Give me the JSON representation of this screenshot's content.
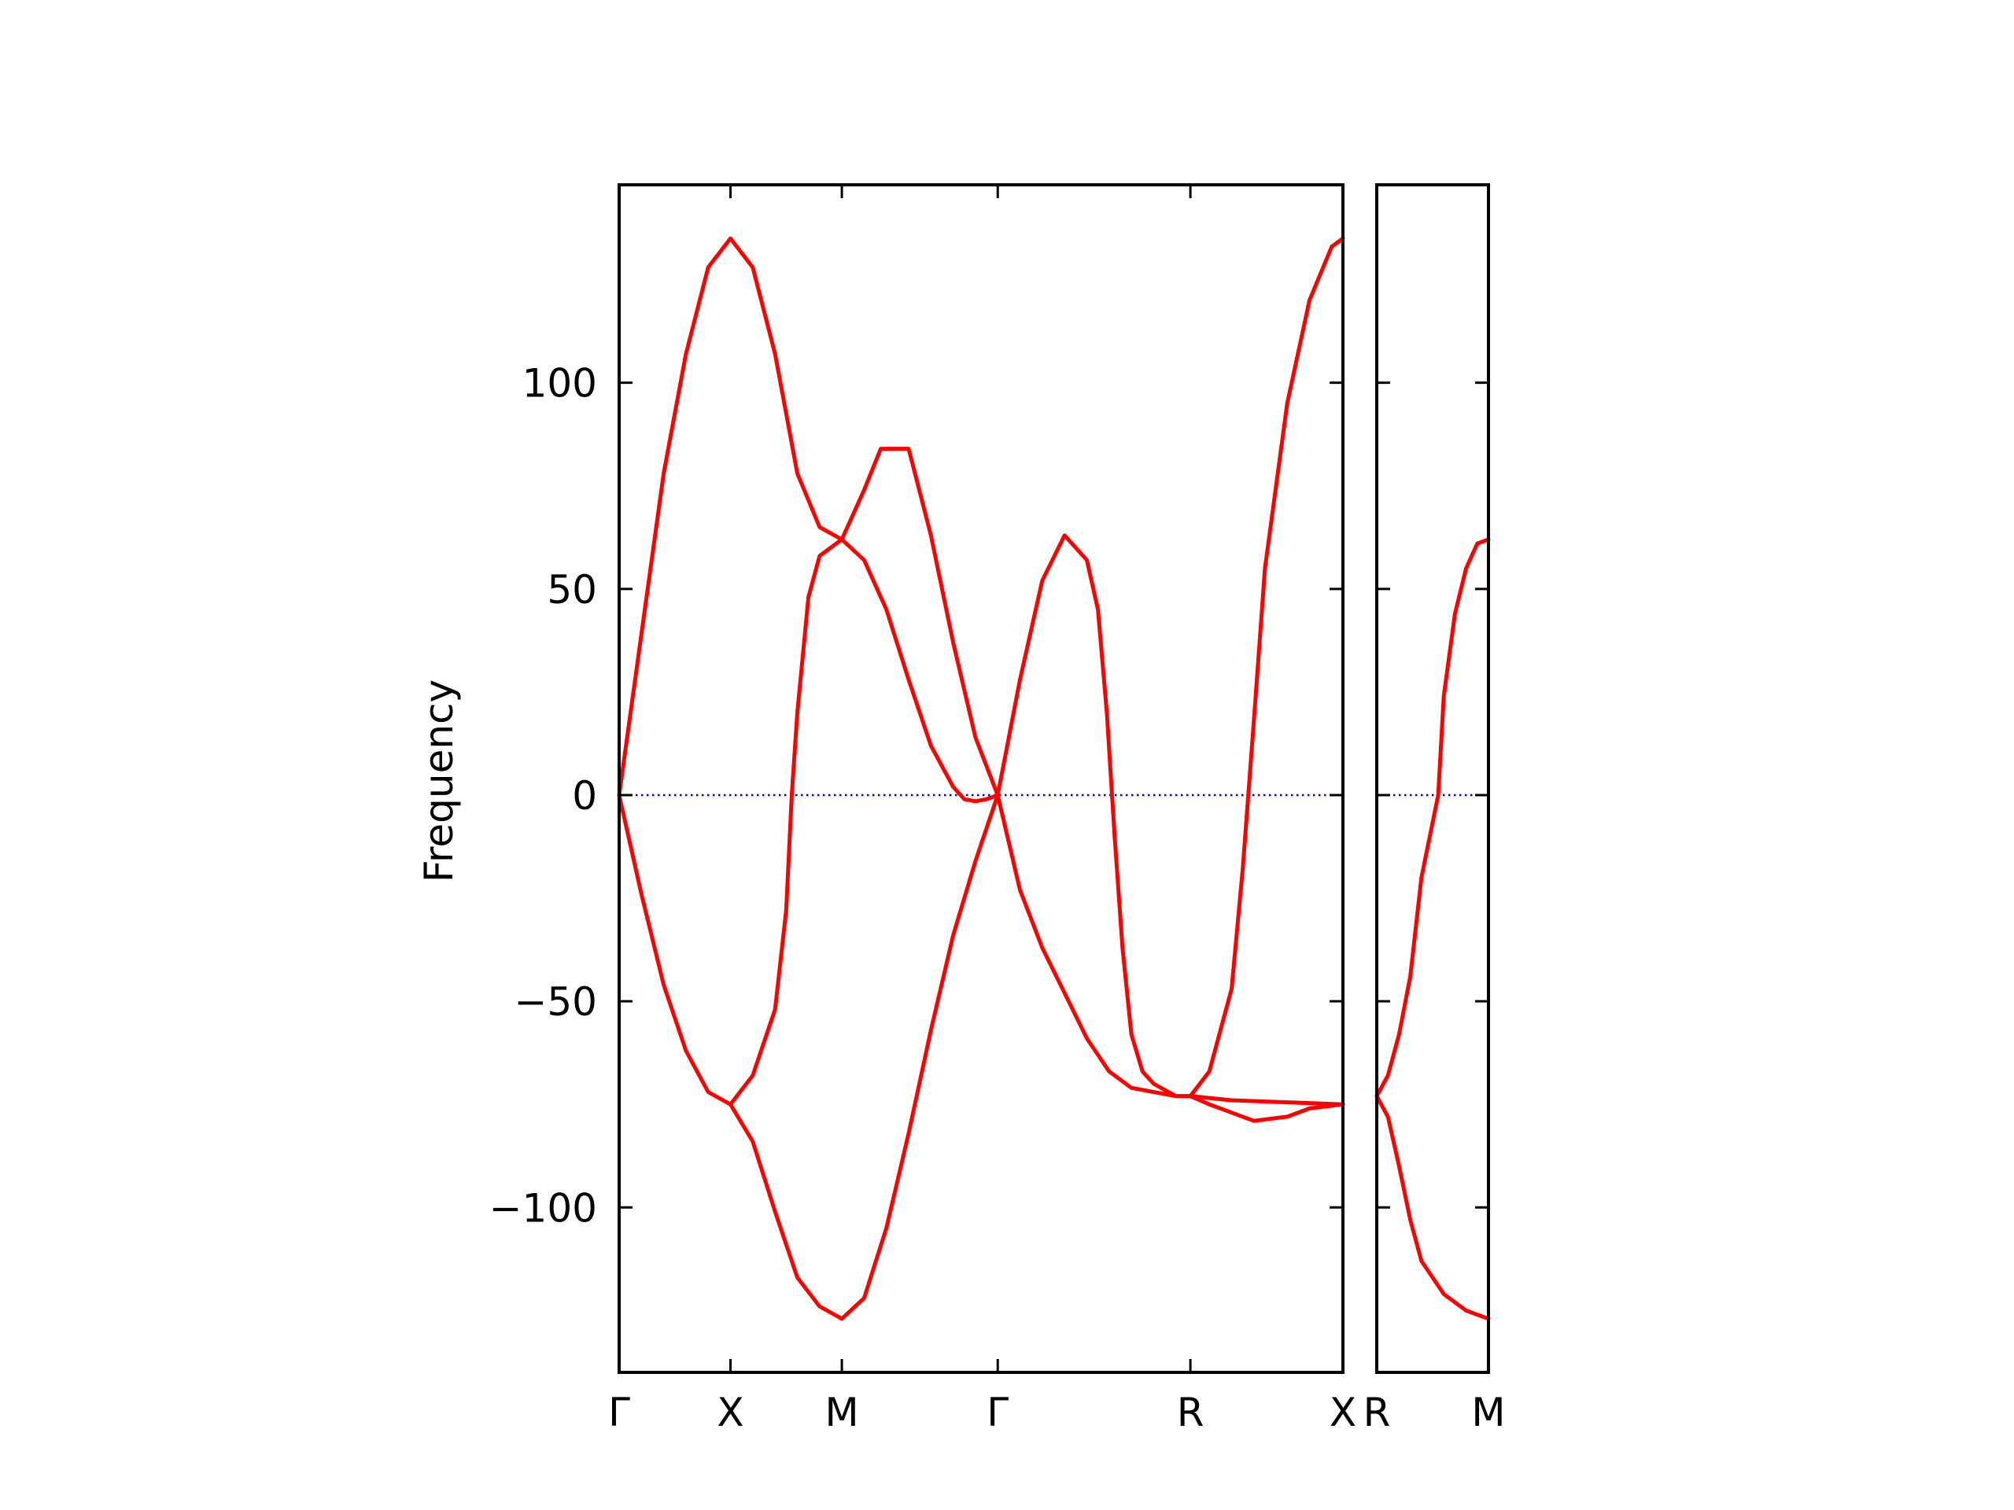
{
  "chart_data": {
    "type": "line",
    "ylabel": "Frequency",
    "ylim": [
      -140,
      148
    ],
    "grid": false,
    "legend": "none",
    "colors": {
      "band": "#ff0000",
      "zero_line": "#0000cc",
      "axes": "#000000"
    },
    "y_ticks": [
      {
        "value": 100,
        "label": "100"
      },
      {
        "value": 50,
        "label": "50"
      },
      {
        "value": 0,
        "label": "0"
      },
      {
        "value": -50,
        "label": "−50"
      },
      {
        "value": -100,
        "label": "−100"
      }
    ],
    "panels": [
      {
        "id": "main",
        "xlim": [
          0,
          6.5
        ],
        "x_ticks": [
          {
            "value": 0,
            "label": "Γ"
          },
          {
            "value": 1,
            "label": "X"
          },
          {
            "value": 2,
            "label": "M"
          },
          {
            "value": 3.4,
            "label": "Γ"
          },
          {
            "value": 5.13,
            "label": "R"
          },
          {
            "value": 6.5,
            "label": "X"
          }
        ],
        "series": [
          {
            "points": [
              [
                0,
                0
              ],
              [
                0.2,
                39
              ],
              [
                0.4,
                78
              ],
              [
                0.6,
                107
              ],
              [
                0.8,
                128
              ],
              [
                1.0,
                135
              ],
              [
                1.2,
                128
              ],
              [
                1.4,
                107
              ],
              [
                1.6,
                78
              ],
              [
                1.8,
                65
              ],
              [
                2.0,
                62
              ],
              [
                2.2,
                74
              ],
              [
                2.35,
                84
              ],
              [
                2.6,
                84
              ],
              [
                2.8,
                63
              ],
              [
                3.0,
                37
              ],
              [
                3.2,
                14
              ],
              [
                3.4,
                0
              ],
              [
                3.6,
                -23
              ],
              [
                3.8,
                -37
              ],
              [
                4.0,
                -48
              ],
              [
                4.2,
                -59
              ],
              [
                4.4,
                -67
              ],
              [
                4.6,
                -71
              ],
              [
                4.8,
                -72
              ],
              [
                5.0,
                -73
              ],
              [
                5.13,
                -73
              ],
              [
                5.5,
                -74
              ],
              [
                6.0,
                -74.5
              ],
              [
                6.5,
                -75
              ]
            ]
          },
          {
            "points": [
              [
                0,
                0
              ],
              [
                0.2,
                -24
              ],
              [
                0.4,
                -46
              ],
              [
                0.6,
                -62
              ],
              [
                0.8,
                -72
              ],
              [
                1.0,
                -75
              ],
              [
                1.2,
                -84
              ],
              [
                1.4,
                -101
              ],
              [
                1.6,
                -117
              ],
              [
                1.8,
                -124
              ],
              [
                2.0,
                -127
              ],
              [
                2.2,
                -122
              ],
              [
                2.4,
                -105
              ],
              [
                2.6,
                -82
              ],
              [
                2.8,
                -57
              ],
              [
                3.0,
                -34
              ],
              [
                3.2,
                -16
              ],
              [
                3.4,
                0
              ],
              [
                3.6,
                28
              ],
              [
                3.8,
                52
              ],
              [
                4.0,
                63
              ],
              [
                4.2,
                57
              ],
              [
                4.3,
                45
              ],
              [
                4.38,
                20
              ],
              [
                4.45,
                -10
              ],
              [
                4.52,
                -37
              ],
              [
                4.6,
                -58
              ],
              [
                4.7,
                -67
              ],
              [
                4.8,
                -70
              ],
              [
                5.0,
                -73
              ],
              [
                5.13,
                -73
              ],
              [
                5.3,
                -75
              ],
              [
                5.5,
                -77
              ],
              [
                5.7,
                -79
              ],
              [
                6.0,
                -78
              ],
              [
                6.2,
                -76
              ],
              [
                6.5,
                -75
              ]
            ]
          },
          {
            "points": [
              [
                1.0,
                -75
              ],
              [
                1.2,
                -68
              ],
              [
                1.4,
                -52
              ],
              [
                1.5,
                -28
              ],
              [
                1.55,
                0
              ],
              [
                1.6,
                20
              ],
              [
                1.7,
                48
              ],
              [
                1.8,
                58
              ],
              [
                2.0,
                62
              ],
              [
                2.2,
                57
              ],
              [
                2.4,
                45
              ],
              [
                2.6,
                28
              ],
              [
                2.8,
                12
              ],
              [
                3.0,
                2
              ],
              [
                3.1,
                -1
              ],
              [
                3.2,
                -1.5
              ],
              [
                3.3,
                -1
              ],
              [
                3.4,
                0
              ]
            ]
          },
          {
            "points": [
              [
                5.13,
                -73
              ],
              [
                5.3,
                -67
              ],
              [
                5.5,
                -47
              ],
              [
                5.6,
                -18
              ],
              [
                5.65,
                0
              ],
              [
                5.7,
                18
              ],
              [
                5.8,
                55
              ],
              [
                6.0,
                95
              ],
              [
                6.2,
                120
              ],
              [
                6.4,
                133
              ],
              [
                6.5,
                135
              ]
            ]
          }
        ]
      },
      {
        "id": "side",
        "xlim": [
          0,
          1.0
        ],
        "x_ticks": [
          {
            "value": 0,
            "label": "R"
          },
          {
            "value": 1.0,
            "label": "M"
          }
        ],
        "series": [
          {
            "points": [
              [
                0,
                -73
              ],
              [
                0.1,
                -68
              ],
              [
                0.2,
                -58
              ],
              [
                0.3,
                -44
              ],
              [
                0.4,
                -20
              ],
              [
                0.55,
                0
              ],
              [
                0.6,
                24
              ],
              [
                0.7,
                44
              ],
              [
                0.8,
                55
              ],
              [
                0.9,
                61
              ],
              [
                1.0,
                62
              ]
            ]
          },
          {
            "points": [
              [
                0,
                -73
              ],
              [
                0.1,
                -78
              ],
              [
                0.2,
                -90
              ],
              [
                0.3,
                -103
              ],
              [
                0.4,
                -113
              ],
              [
                0.6,
                -121
              ],
              [
                0.8,
                -125
              ],
              [
                1.0,
                -127
              ]
            ]
          }
        ]
      }
    ]
  }
}
